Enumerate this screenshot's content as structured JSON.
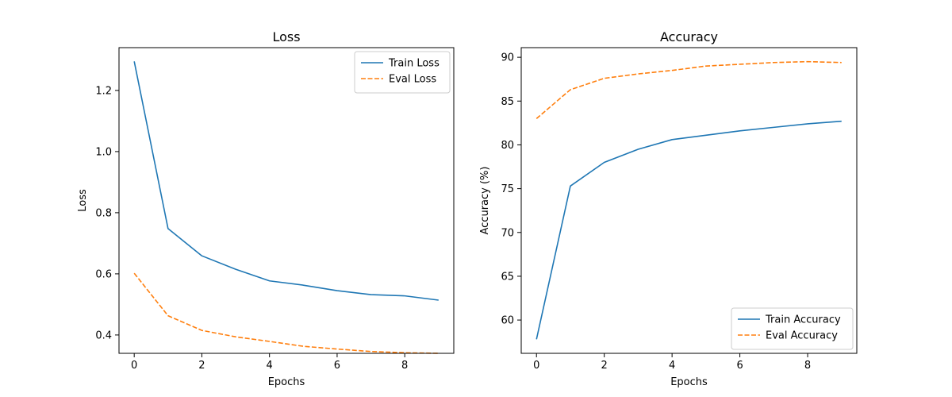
{
  "chart_data": [
    {
      "type": "line",
      "title": "Loss",
      "xlabel": "Epochs",
      "ylabel": "Loss",
      "x": [
        0,
        1,
        2,
        3,
        4,
        5,
        6,
        7,
        8,
        9
      ],
      "xlim": [
        -0.45,
        9.45
      ],
      "ylim": [
        0.34,
        1.34
      ],
      "xticks": [
        0,
        2,
        4,
        6,
        8
      ],
      "yticks": [
        0.4,
        0.6,
        0.8,
        1.0,
        1.2
      ],
      "ytick_format": 1,
      "grid": false,
      "legend_position": "top-right",
      "series": [
        {
          "name": "Train Loss",
          "style": "solid",
          "color": "#1f77b4",
          "values": [
            1.295,
            0.748,
            0.659,
            0.615,
            0.577,
            0.563,
            0.545,
            0.532,
            0.528,
            0.514
          ]
        },
        {
          "name": "Eval Loss",
          "style": "dashed",
          "color": "#ff7f0e",
          "values": [
            0.602,
            0.463,
            0.415,
            0.394,
            0.379,
            0.363,
            0.354,
            0.346,
            0.342,
            0.34
          ]
        }
      ]
    },
    {
      "type": "line",
      "title": "Accuracy",
      "xlabel": "Epochs",
      "ylabel": "Accuracy (%)",
      "x": [
        0,
        1,
        2,
        3,
        4,
        5,
        6,
        7,
        8,
        9
      ],
      "xlim": [
        -0.45,
        9.45
      ],
      "ylim": [
        56.2,
        91.1
      ],
      "xticks": [
        0,
        2,
        4,
        6,
        8
      ],
      "yticks": [
        60,
        65,
        70,
        75,
        80,
        85,
        90
      ],
      "ytick_format": 0,
      "grid": false,
      "legend_position": "bottom-right",
      "series": [
        {
          "name": "Train Accuracy",
          "style": "solid",
          "color": "#1f77b4",
          "values": [
            57.8,
            75.3,
            78.0,
            79.5,
            80.6,
            81.1,
            81.6,
            82.0,
            82.4,
            82.7
          ]
        },
        {
          "name": "Eval Accuracy",
          "style": "dashed",
          "color": "#ff7f0e",
          "values": [
            83.0,
            86.3,
            87.6,
            88.1,
            88.5,
            89.0,
            89.2,
            89.4,
            89.5,
            89.4
          ]
        }
      ]
    }
  ]
}
